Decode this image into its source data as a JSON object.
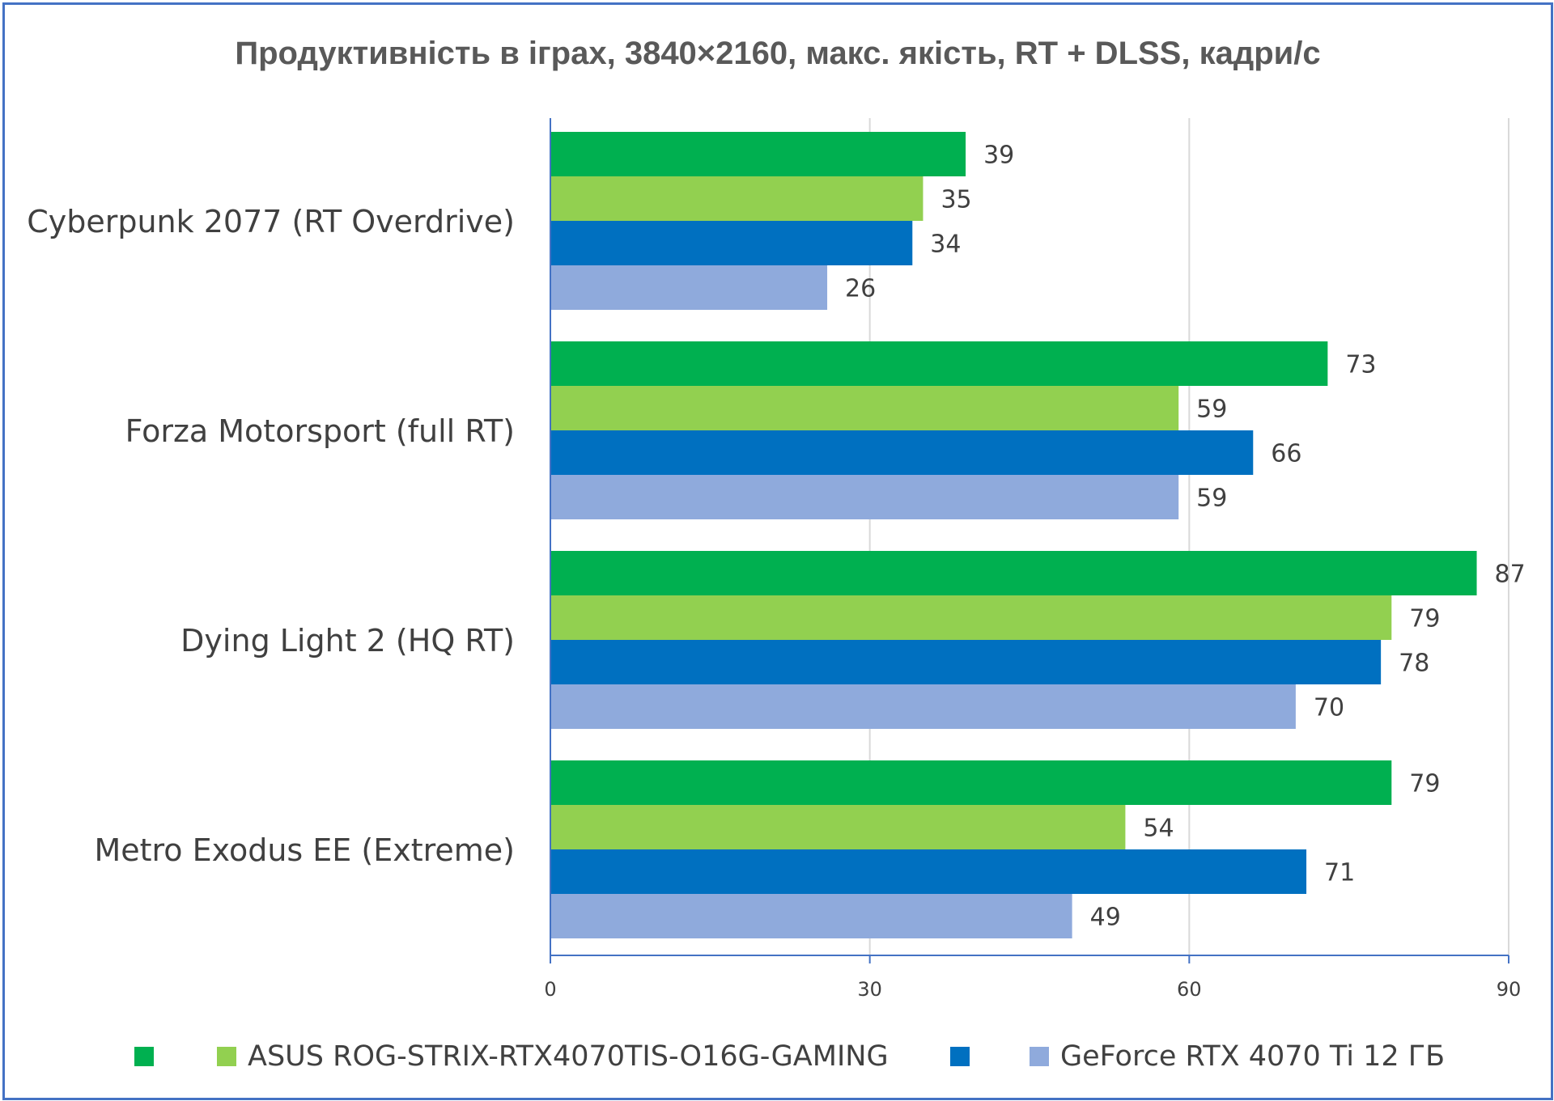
{
  "chart_data": {
    "type": "bar",
    "orientation": "horizontal",
    "title": "Продуктивність в іграх, 3840×2160, макс. якість, RT + DLSS, кадри/с",
    "categories": [
      "Cyberpunk 2077 (RT Overdrive)",
      "Forza Motorsport (full RT)",
      "Dying Light 2 (HQ RT)",
      "Metro Exodus EE (Extreme)"
    ],
    "series": [
      {
        "name": "",
        "color": "#00b050",
        "values": [
          39,
          73,
          87,
          79
        ]
      },
      {
        "name": "ASUS ROG-STRIX-RTX4070TIS-O16G-GAMING",
        "color": "#92d050",
        "values": [
          35,
          59,
          79,
          54
        ]
      },
      {
        "name": "",
        "color": "#0070c0",
        "values": [
          34,
          66,
          78,
          71
        ]
      },
      {
        "name": "GeForce RTX 4070 Ti 12 ГБ",
        "color": "#8faadc",
        "values": [
          26,
          59,
          70,
          49
        ]
      }
    ],
    "xlim": [
      0,
      90
    ],
    "xticks": [
      0,
      30,
      60,
      90
    ],
    "grid": true,
    "data_labels": true,
    "legend_position": "bottom"
  }
}
